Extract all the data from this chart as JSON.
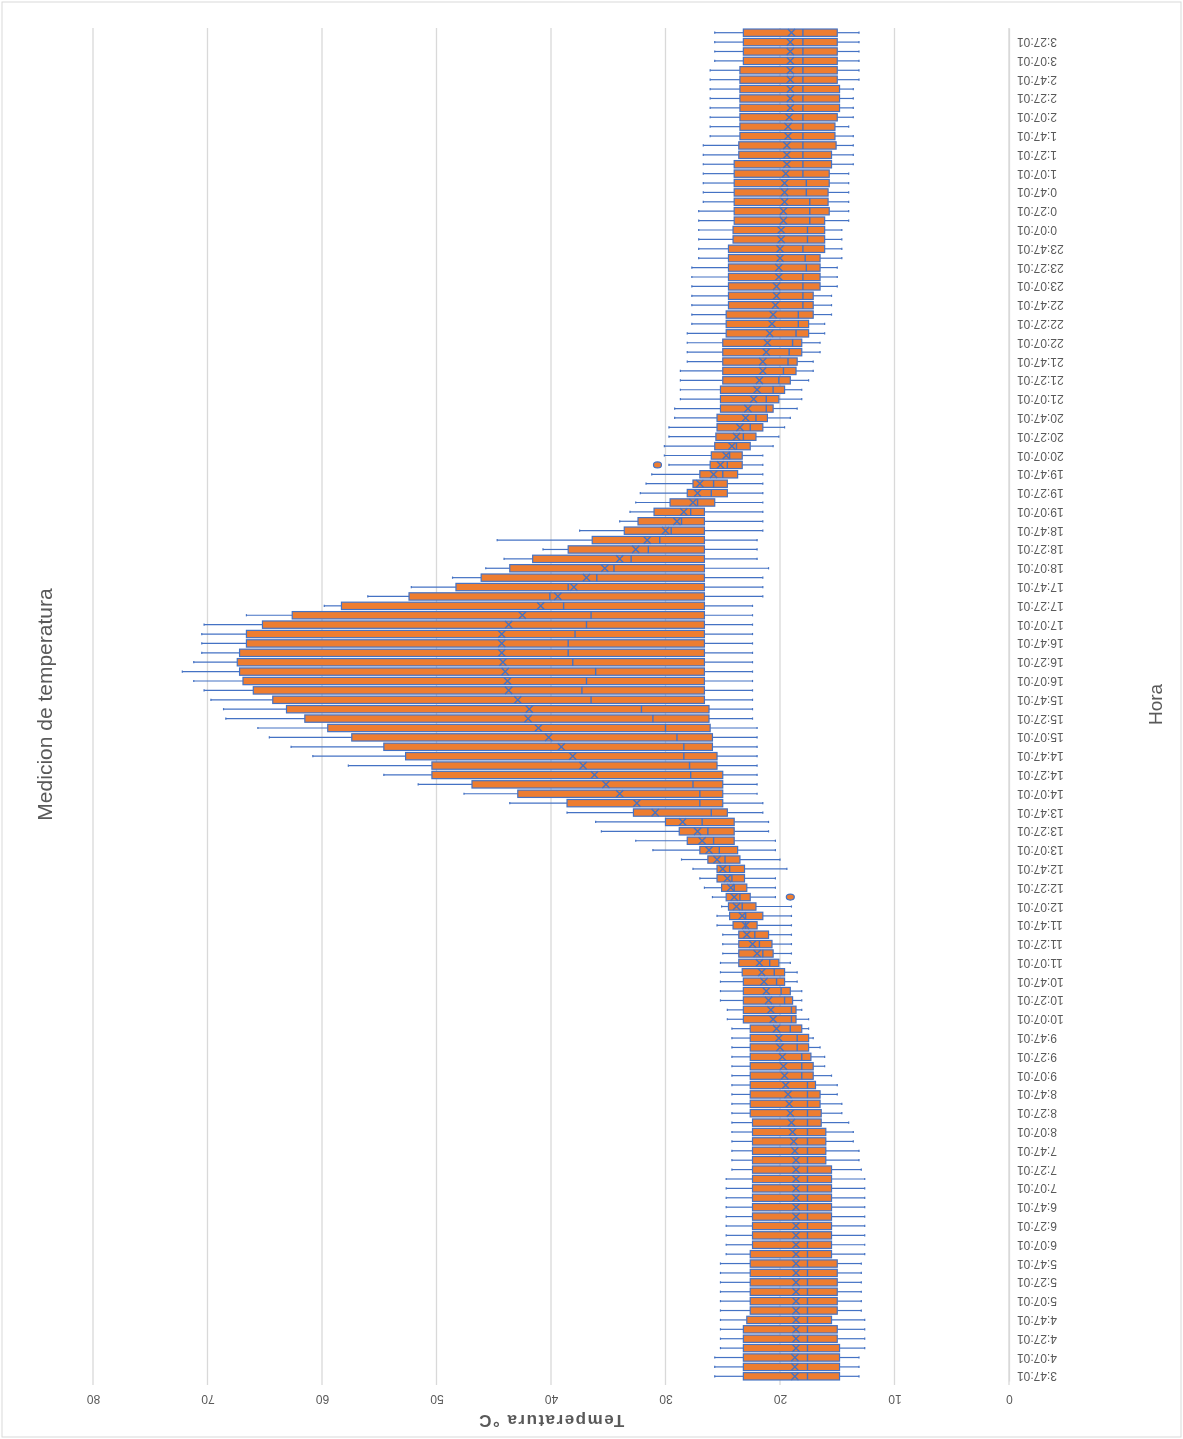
{
  "chart_data": {
    "type": "box",
    "orientation": "horizontal",
    "title": "Medicion de temperatura",
    "ylabel": "Hora",
    "xlabel": "Temperatura °C",
    "color": "#ed7d31",
    "marker": "cross",
    "grid": "x",
    "xlim": [
      80,
      0
    ],
    "xticks": [
      0,
      10,
      20,
      30,
      40,
      50,
      60,
      70,
      80
    ],
    "categories": [
      null,
      "3:27:01",
      null,
      "3:07:01",
      null,
      "2:47:01",
      null,
      "2:27:01",
      null,
      "2:07:01",
      null,
      "1:47:01",
      null,
      "1:27:01",
      null,
      "1:07:01",
      null,
      "0:47:01",
      null,
      "0:27:01",
      null,
      "0:07:01",
      null,
      "23:47:01",
      null,
      "23:27:01",
      null,
      "23:07:01",
      null,
      "22:47:01",
      null,
      "22:27:01",
      null,
      "22:07:01",
      null,
      "21:47:01",
      null,
      "21:27:01",
      null,
      "21:07:01",
      null,
      "20:47:01",
      null,
      "20:27:01",
      null,
      "20:07:01",
      null,
      "19:47:01",
      null,
      "19:27:01",
      null,
      "19:07:01",
      null,
      "18:47:01",
      null,
      "18:27:01",
      null,
      "18:07:01",
      null,
      "17:47:01",
      null,
      "17:27:01",
      null,
      "17:07:01",
      null,
      "16:47:01",
      null,
      "16:27:01",
      null,
      "16:07:01",
      null,
      "15:47:01",
      null,
      "15:27:01",
      null,
      "15:07:01",
      null,
      "14:47:01",
      null,
      "14:27:01",
      null,
      "14:07:01",
      null,
      "13:47:01",
      null,
      "13:27:01",
      null,
      "13:07:01",
      null,
      "12:47:01",
      null,
      "12:27:01",
      null,
      "12:07:01",
      null,
      "11:47:01",
      null,
      "11:27:01",
      null,
      "11:07:01",
      null,
      "10:47:01",
      null,
      "10:27:01",
      null,
      "10:07:01",
      null,
      "9:47:01",
      null,
      "9:27:01",
      null,
      "9:07:01",
      null,
      "8:47:01",
      null,
      "8:27:01",
      null,
      "8:07:01",
      null,
      "7:47:01",
      null,
      "7:27:01",
      null,
      "7:07:01",
      null,
      "6:47:01",
      null,
      "6:27:01",
      null,
      "6:07:01",
      null,
      "5:47:01",
      null,
      "5:27:01",
      null,
      "5:07:01",
      null,
      "4:47:01",
      null,
      "4:27:01",
      null,
      "4:07:01",
      null,
      "3:47:01"
    ],
    "boxes": [
      {
        "low": 13.1,
        "q1": 15.0,
        "median": 18.0,
        "q3": 23.2,
        "high": 25.7,
        "mean": 19.0
      },
      {
        "low": 13.1,
        "q1": 15.0,
        "median": 18.0,
        "q3": 23.2,
        "high": 25.7,
        "mean": 19.1
      },
      {
        "low": 13.1,
        "q1": 15.0,
        "median": 18.0,
        "q3": 23.2,
        "high": 25.7,
        "mean": 19.1
      },
      {
        "low": 13.1,
        "q1": 15.0,
        "median": 18.0,
        "q3": 23.2,
        "high": 25.7,
        "mean": 19.1
      },
      {
        "low": 13.1,
        "q1": 15.0,
        "median": 18.0,
        "q3": 23.5,
        "high": 26.1,
        "mean": 19.1
      },
      {
        "low": 13.1,
        "q1": 15.0,
        "median": 18.0,
        "q3": 23.5,
        "high": 26.1,
        "mean": 19.1
      },
      {
        "low": 13.6,
        "q1": 14.8,
        "median": 18.0,
        "q3": 23.5,
        "high": 26.1,
        "mean": 19.1
      },
      {
        "low": 13.6,
        "q1": 14.8,
        "median": 18.0,
        "q3": 23.5,
        "high": 26.1,
        "mean": 19.1
      },
      {
        "low": 13.6,
        "q1": 14.8,
        "median": 18.0,
        "q3": 23.5,
        "high": 26.1,
        "mean": 19.1
      },
      {
        "low": 13.6,
        "q1": 15.0,
        "median": 18.0,
        "q3": 23.5,
        "high": 26.1,
        "mean": 19.2
      },
      {
        "low": 14.0,
        "q1": 15.2,
        "median": 18.0,
        "q3": 23.5,
        "high": 26.1,
        "mean": 19.3
      },
      {
        "low": 13.6,
        "q1": 15.2,
        "median": 18.0,
        "q3": 23.5,
        "high": 26.1,
        "mean": 19.3
      },
      {
        "low": 13.6,
        "q1": 15.1,
        "median": 18.0,
        "q3": 23.6,
        "high": 26.7,
        "mean": 19.4
      },
      {
        "low": 13.6,
        "q1": 15.5,
        "median": 18.0,
        "q3": 23.6,
        "high": 26.7,
        "mean": 19.4
      },
      {
        "low": 13.6,
        "q1": 15.5,
        "median": 18.0,
        "q3": 24.0,
        "high": 26.7,
        "mean": 19.4
      },
      {
        "low": 14.0,
        "q1": 15.7,
        "median": 18.0,
        "q3": 24.0,
        "high": 26.7,
        "mean": 19.5
      },
      {
        "low": 14.0,
        "q1": 15.7,
        "median": 17.7,
        "q3": 24.0,
        "high": 26.7,
        "mean": 19.6
      },
      {
        "low": 14.0,
        "q1": 15.8,
        "median": 17.7,
        "q3": 24.0,
        "high": 26.7,
        "mean": 19.6
      },
      {
        "low": 14.0,
        "q1": 15.8,
        "median": 17.4,
        "q3": 24.0,
        "high": 26.7,
        "mean": 19.6
      },
      {
        "low": 14.0,
        "q1": 15.7,
        "median": 17.4,
        "q3": 24.0,
        "high": 27.1,
        "mean": 19.7
      },
      {
        "low": 14.0,
        "q1": 16.1,
        "median": 17.4,
        "q3": 24.0,
        "high": 27.1,
        "mean": 19.7
      },
      {
        "low": 14.6,
        "q1": 16.1,
        "median": 17.6,
        "q3": 24.1,
        "high": 27.1,
        "mean": 19.9
      },
      {
        "low": 14.6,
        "q1": 16.1,
        "median": 17.6,
        "q3": 24.1,
        "high": 27.1,
        "mean": 19.9
      },
      {
        "low": 14.6,
        "q1": 16.1,
        "median": 18.0,
        "q3": 24.5,
        "high": 27.1,
        "mean": 20.0
      },
      {
        "low": 14.6,
        "q1": 16.5,
        "median": 17.8,
        "q3": 24.5,
        "high": 27.1,
        "mean": 20.0
      },
      {
        "low": 15.0,
        "q1": 16.5,
        "median": 17.7,
        "q3": 24.5,
        "high": 27.7,
        "mean": 20.1
      },
      {
        "low": 15.0,
        "q1": 16.5,
        "median": 18.0,
        "q3": 24.5,
        "high": 27.7,
        "mean": 20.1
      },
      {
        "low": 15.0,
        "q1": 16.5,
        "median": 18.0,
        "q3": 24.5,
        "high": 27.7,
        "mean": 20.3
      },
      {
        "low": 15.5,
        "q1": 17.1,
        "median": 18.0,
        "q3": 24.5,
        "high": 27.7,
        "mean": 20.3
      },
      {
        "low": 15.5,
        "q1": 17.1,
        "median": 18.0,
        "q3": 24.5,
        "high": 27.7,
        "mean": 20.4
      },
      {
        "low": 15.5,
        "q1": 17.1,
        "median": 18.4,
        "q3": 24.7,
        "high": 27.7,
        "mean": 20.6
      },
      {
        "low": 16.1,
        "q1": 17.5,
        "median": 18.4,
        "q3": 24.7,
        "high": 27.7,
        "mean": 20.7
      },
      {
        "low": 16.1,
        "q1": 17.5,
        "median": 18.6,
        "q3": 24.7,
        "high": 28.1,
        "mean": 20.9
      },
      {
        "low": 16.5,
        "q1": 18.1,
        "median": 18.9,
        "q3": 25.0,
        "high": 28.1,
        "mean": 21.1
      },
      {
        "low": 16.5,
        "q1": 18.1,
        "median": 19.2,
        "q3": 25.0,
        "high": 28.1,
        "mean": 21.2
      },
      {
        "low": 17.1,
        "q1": 18.5,
        "median": 19.3,
        "q3": 25.0,
        "high": 28.1,
        "mean": 21.5
      },
      {
        "low": 17.1,
        "q1": 18.6,
        "median": 19.7,
        "q3": 25.0,
        "high": 28.7,
        "mean": 21.5
      },
      {
        "low": 17.5,
        "q1": 19.1,
        "median": 20.1,
        "q3": 25.0,
        "high": 28.7,
        "mean": 21.8
      },
      {
        "low": 18.1,
        "q1": 19.6,
        "median": 20.6,
        "q3": 25.2,
        "high": 28.7,
        "mean": 22.0
      },
      {
        "low": 18.1,
        "q1": 20.1,
        "median": 21.2,
        "q3": 25.2,
        "high": 28.7,
        "mean": 22.3
      },
      {
        "low": 18.5,
        "q1": 20.6,
        "median": 21.2,
        "q3": 25.2,
        "high": 29.2,
        "mean": 22.8
      },
      {
        "low": 19.1,
        "q1": 21.1,
        "median": 22.1,
        "q3": 25.5,
        "high": 29.2,
        "mean": 23.0
      },
      {
        "low": 19.6,
        "q1": 21.5,
        "median": 22.6,
        "q3": 25.5,
        "high": 29.7,
        "mean": 23.5
      },
      {
        "low": 20.1,
        "q1": 22.1,
        "median": 23.2,
        "q3": 25.6,
        "high": 29.7,
        "mean": 23.8
      },
      {
        "low": 20.6,
        "q1": 22.6,
        "median": 23.8,
        "q3": 25.7,
        "high": 30.1,
        "mean": 24.2
      },
      {
        "low": 21.5,
        "q1": 23.3,
        "median": 24.4,
        "q3": 26.0,
        "high": 30.1,
        "mean": 24.7
      },
      {
        "low": 21.5,
        "q1": 23.3,
        "median": 24.6,
        "q3": 26.1,
        "high": 29.7,
        "mean": 25.2,
        "outliers": [
          30.7
        ]
      },
      {
        "low": 21.5,
        "q1": 23.7,
        "median": 25.0,
        "q3": 27.0,
        "high": 31.2,
        "mean": 25.8
      },
      {
        "low": 21.5,
        "q1": 24.6,
        "median": 25.8,
        "q3": 27.6,
        "high": 31.7,
        "mean": 27.0
      },
      {
        "low": 21.5,
        "q1": 24.6,
        "median": 26.0,
        "q3": 28.1,
        "high": 32.2,
        "mean": 27.2
      },
      {
        "low": 21.5,
        "q1": 25.7,
        "median": 27.2,
        "q3": 29.6,
        "high": 32.6,
        "mean": 27.6
      },
      {
        "low": 21.5,
        "q1": 26.6,
        "median": 27.8,
        "q3": 31.0,
        "high": 33.1,
        "mean": 28.4
      },
      {
        "low": 21.5,
        "q1": 26.6,
        "median": 28.6,
        "q3": 32.4,
        "high": 34.0,
        "mean": 29.0
      },
      {
        "low": 21.5,
        "q1": 26.6,
        "median": 29.5,
        "q3": 33.6,
        "high": 37.5,
        "mean": 30.0
      },
      {
        "low": 22.0,
        "q1": 26.6,
        "median": 30.5,
        "q3": 36.4,
        "high": 44.7,
        "mean": 31.6
      },
      {
        "low": 22.0,
        "q1": 26.6,
        "median": 31.5,
        "q3": 38.5,
        "high": 40.7,
        "mean": 32.6
      },
      {
        "low": 22.0,
        "q1": 26.6,
        "median": 33.0,
        "q3": 41.6,
        "high": 44.1,
        "mean": 34.0
      },
      {
        "low": 21.0,
        "q1": 26.6,
        "median": 34.5,
        "q3": 43.6,
        "high": 45.7,
        "mean": 35.3
      },
      {
        "low": 21.5,
        "q1": 26.6,
        "median": 36.0,
        "q3": 46.1,
        "high": 48.6,
        "mean": 36.9
      },
      {
        "low": 21.5,
        "q1": 26.6,
        "median": 38.5,
        "q3": 48.3,
        "high": 52.2,
        "mean": 38.0
      },
      {
        "low": 21.5,
        "q1": 26.6,
        "median": 40.1,
        "q3": 52.4,
        "high": 56.0,
        "mean": 39.4
      },
      {
        "low": 22.4,
        "q1": 26.6,
        "median": 38.9,
        "q3": 58.3,
        "high": 59.8,
        "mean": 40.9
      },
      {
        "low": 22.4,
        "q1": 26.6,
        "median": 36.5,
        "q3": 62.6,
        "high": 66.6,
        "mean": 42.5
      },
      {
        "low": 22.4,
        "q1": 26.6,
        "median": 36.9,
        "q3": 65.2,
        "high": 70.3,
        "mean": 43.7
      },
      {
        "low": 22.4,
        "q1": 26.6,
        "median": 37.9,
        "q3": 66.6,
        "high": 70.5,
        "mean": 44.3
      },
      {
        "low": 22.4,
        "q1": 26.6,
        "median": 38.5,
        "q3": 66.6,
        "high": 70.5,
        "mean": 44.3
      },
      {
        "low": 22.4,
        "q1": 26.6,
        "median": 38.5,
        "q3": 67.2,
        "high": 70.5,
        "mean": 44.3
      },
      {
        "low": 22.4,
        "q1": 26.6,
        "median": 38.1,
        "q3": 67.4,
        "high": 71.2,
        "mean": 44.2
      },
      {
        "low": 22.4,
        "q1": 26.6,
        "median": 36.1,
        "q3": 67.2,
        "high": 72.2,
        "mean": 44.0
      },
      {
        "low": 22.4,
        "q1": 26.6,
        "median": 36.9,
        "q3": 66.9,
        "high": 71.2,
        "mean": 43.8
      },
      {
        "low": 22.4,
        "q1": 26.6,
        "median": 37.3,
        "q3": 66.0,
        "high": 70.3,
        "mean": 43.7
      },
      {
        "low": 22.4,
        "q1": 26.6,
        "median": 36.5,
        "q3": 64.3,
        "high": 69.7,
        "mean": 42.9
      },
      {
        "low": 22.4,
        "q1": 26.2,
        "median": 32.1,
        "q3": 63.1,
        "high": 68.6,
        "mean": 41.9
      },
      {
        "low": 22.4,
        "q1": 26.2,
        "median": 31.1,
        "q3": 61.5,
        "high": 68.4,
        "mean": 42.0
      },
      {
        "low": 22.0,
        "q1": 26.1,
        "median": 30.0,
        "q3": 59.5,
        "high": 65.6,
        "mean": 41.1
      },
      {
        "low": 22.0,
        "q1": 25.9,
        "median": 29.0,
        "q3": 57.4,
        "high": 64.6,
        "mean": 40.2
      },
      {
        "low": 22.0,
        "q1": 25.9,
        "median": 28.4,
        "q3": 54.6,
        "high": 62.7,
        "mean": 39.1
      },
      {
        "low": 22.0,
        "q1": 25.5,
        "median": 28.4,
        "q3": 52.7,
        "high": 60.8,
        "mean": 38.1
      },
      {
        "low": 22.0,
        "q1": 25.5,
        "median": 27.9,
        "q3": 50.4,
        "high": 57.7,
        "mean": 37.2
      },
      {
        "low": 22.0,
        "q1": 25.0,
        "median": 27.8,
        "q3": 50.4,
        "high": 54.6,
        "mean": 36.2
      },
      {
        "low": 22.0,
        "q1": 25.0,
        "median": 27.6,
        "q3": 46.9,
        "high": 51.6,
        "mean": 35.2
      },
      {
        "low": 22.0,
        "q1": 25.0,
        "median": 27.0,
        "q3": 42.9,
        "high": 47.6,
        "mean": 34.0
      },
      {
        "low": 21.5,
        "q1": 25.0,
        "median": 27.0,
        "q3": 38.6,
        "high": 43.6,
        "mean": 32.5
      },
      {
        "low": 21.5,
        "q1": 24.6,
        "median": 26.0,
        "q3": 32.8,
        "high": 38.6,
        "mean": 30.9
      },
      {
        "low": 21.0,
        "q1": 24.0,
        "median": 26.8,
        "q3": 30.0,
        "high": 36.1,
        "mean": 28.5
      },
      {
        "low": 21.0,
        "q1": 24.0,
        "median": 26.3,
        "q3": 28.8,
        "high": 35.6,
        "mean": 27.2
      },
      {
        "low": 20.4,
        "q1": 24.0,
        "median": 25.8,
        "q3": 28.1,
        "high": 32.6,
        "mean": 26.8
      },
      {
        "low": 20.4,
        "q1": 23.7,
        "median": 25.3,
        "q3": 27.0,
        "high": 31.1,
        "mean": 26.2
      },
      {
        "low": 20.0,
        "q1": 23.5,
        "median": 24.8,
        "q3": 26.3,
        "high": 28.6,
        "mean": 25.5
      },
      {
        "low": 19.4,
        "q1": 23.1,
        "median": 24.4,
        "q3": 25.5,
        "high": 27.6,
        "mean": 25.0
      },
      {
        "low": 20.4,
        "q1": 23.1,
        "median": 24.2,
        "q3": 25.5,
        "high": 27.0,
        "mean": 24.6
      },
      {
        "low": 20.4,
        "q1": 22.9,
        "median": 24.0,
        "q3": 25.1,
        "high": 26.6,
        "mean": 24.3
      },
      {
        "low": 20.4,
        "q1": 22.6,
        "median": 23.5,
        "q3": 24.7,
        "high": 25.9,
        "mean": 24.0,
        "outliers": [
          19.1
        ]
      },
      {
        "low": 19.0,
        "q1": 22.1,
        "median": 23.3,
        "q3": 24.5,
        "high": 25.1,
        "mean": 23.8
      },
      {
        "low": 19.0,
        "q1": 21.5,
        "median": 23.0,
        "q3": 24.4,
        "high": 25.5,
        "mean": 23.3
      },
      {
        "low": 19.0,
        "q1": 22.0,
        "median": 23.0,
        "q3": 24.1,
        "high": 25.5,
        "mean": 23.0
      },
      {
        "low": 19.0,
        "q1": 21.0,
        "median": 22.2,
        "q3": 23.6,
        "high": 25.0,
        "mean": 22.9
      },
      {
        "low": 19.0,
        "q1": 20.7,
        "median": 21.8,
        "q3": 23.6,
        "high": 25.0,
        "mean": 22.4
      },
      {
        "low": 19.0,
        "q1": 20.6,
        "median": 21.5,
        "q3": 23.6,
        "high": 25.0,
        "mean": 22.0
      },
      {
        "low": 19.1,
        "q1": 20.1,
        "median": 20.9,
        "q3": 23.6,
        "high": 25.2,
        "mean": 21.8
      },
      {
        "low": 18.5,
        "q1": 19.6,
        "median": 20.5,
        "q3": 23.3,
        "high": 25.2,
        "mean": 21.6
      },
      {
        "low": 18.5,
        "q1": 19.6,
        "median": 20.3,
        "q3": 23.2,
        "high": 25.2,
        "mean": 21.4
      },
      {
        "low": 18.1,
        "q1": 19.1,
        "median": 19.9,
        "q3": 23.2,
        "high": 25.2,
        "mean": 21.2
      },
      {
        "low": 18.1,
        "q1": 18.9,
        "median": 19.6,
        "q3": 23.2,
        "high": 25.2,
        "mean": 21.0
      },
      {
        "low": 18.1,
        "q1": 18.6,
        "median": 19.0,
        "q3": 23.2,
        "high": 24.6,
        "mean": 20.8
      },
      {
        "low": 17.5,
        "q1": 18.6,
        "median": 19.0,
        "q3": 23.2,
        "high": 24.6,
        "mean": 20.6
      },
      {
        "low": 17.5,
        "q1": 18.1,
        "median": 19.1,
        "q3": 22.6,
        "high": 24.2,
        "mean": 20.3
      },
      {
        "low": 17.1,
        "q1": 17.5,
        "median": 18.5,
        "q3": 22.6,
        "high": 24.2,
        "mean": 20.1
      },
      {
        "low": 16.5,
        "q1": 17.5,
        "median": 18.5,
        "q3": 22.6,
        "high": 24.2,
        "mean": 20.0
      },
      {
        "low": 16.1,
        "q1": 17.3,
        "median": 18.1,
        "q3": 22.6,
        "high": 24.2,
        "mean": 19.8
      },
      {
        "low": 16.1,
        "q1": 17.1,
        "median": 18.1,
        "q3": 22.6,
        "high": 24.2,
        "mean": 19.7
      },
      {
        "low": 15.5,
        "q1": 17.1,
        "median": 18.1,
        "q3": 22.6,
        "high": 24.2,
        "mean": 19.6
      },
      {
        "low": 15.0,
        "q1": 16.9,
        "median": 17.6,
        "q3": 22.6,
        "high": 24.2,
        "mean": 19.5
      },
      {
        "low": 15.0,
        "q1": 16.5,
        "median": 17.6,
        "q3": 22.6,
        "high": 24.2,
        "mean": 19.3
      },
      {
        "low": 14.6,
        "q1": 16.5,
        "median": 17.6,
        "q3": 22.6,
        "high": 24.2,
        "mean": 19.2
      },
      {
        "low": 14.6,
        "q1": 16.4,
        "median": 17.6,
        "q3": 22.6,
        "high": 24.2,
        "mean": 19.1
      },
      {
        "low": 14.0,
        "q1": 16.4,
        "median": 17.6,
        "q3": 22.4,
        "high": 24.2,
        "mean": 19.0
      },
      {
        "low": 13.6,
        "q1": 16.0,
        "median": 17.6,
        "q3": 22.4,
        "high": 24.2,
        "mean": 18.9
      },
      {
        "low": 13.6,
        "q1": 16.0,
        "median": 17.6,
        "q3": 22.4,
        "high": 24.2,
        "mean": 18.8
      },
      {
        "low": 13.1,
        "q1": 16.0,
        "median": 17.6,
        "q3": 22.4,
        "high": 24.2,
        "mean": 18.7
      },
      {
        "low": 13.1,
        "q1": 16.0,
        "median": 17.6,
        "q3": 22.4,
        "high": 24.2,
        "mean": 18.6
      },
      {
        "low": 12.9,
        "q1": 15.5,
        "median": 17.6,
        "q3": 22.4,
        "high": 24.2,
        "mean": 18.6
      },
      {
        "low": 12.6,
        "q1": 15.5,
        "median": 17.6,
        "q3": 22.4,
        "high": 24.7,
        "mean": 18.6
      },
      {
        "low": 12.6,
        "q1": 15.5,
        "median": 17.6,
        "q3": 22.4,
        "high": 24.7,
        "mean": 18.6
      },
      {
        "low": 12.6,
        "q1": 15.5,
        "median": 17.6,
        "q3": 22.4,
        "high": 24.7,
        "mean": 18.6
      },
      {
        "low": 12.6,
        "q1": 15.5,
        "median": 17.6,
        "q3": 22.4,
        "high": 24.7,
        "mean": 18.6
      },
      {
        "low": 12.6,
        "q1": 15.5,
        "median": 17.6,
        "q3": 22.4,
        "high": 24.7,
        "mean": 18.6
      },
      {
        "low": 12.6,
        "q1": 15.5,
        "median": 17.6,
        "q3": 22.4,
        "high": 24.7,
        "mean": 18.6
      },
      {
        "low": 12.6,
        "q1": 15.5,
        "median": 17.6,
        "q3": 22.4,
        "high": 24.7,
        "mean": 18.6
      },
      {
        "low": 12.6,
        "q1": 15.5,
        "median": 17.6,
        "q3": 22.4,
        "high": 24.7,
        "mean": 18.6
      },
      {
        "low": 12.6,
        "q1": 15.5,
        "median": 17.6,
        "q3": 22.6,
        "high": 24.7,
        "mean": 18.6
      },
      {
        "low": 12.9,
        "q1": 15.0,
        "median": 17.6,
        "q3": 22.6,
        "high": 25.2,
        "mean": 18.6
      },
      {
        "low": 12.9,
        "q1": 15.0,
        "median": 17.6,
        "q3": 22.6,
        "high": 25.2,
        "mean": 18.6
      },
      {
        "low": 12.9,
        "q1": 15.0,
        "median": 17.6,
        "q3": 22.6,
        "high": 25.2,
        "mean": 18.6
      },
      {
        "low": 12.9,
        "q1": 15.0,
        "median": 17.6,
        "q3": 22.6,
        "high": 25.2,
        "mean": 18.6
      },
      {
        "low": 12.9,
        "q1": 15.0,
        "median": 17.6,
        "q3": 22.6,
        "high": 25.2,
        "mean": 18.6
      },
      {
        "low": 12.9,
        "q1": 15.0,
        "median": 17.6,
        "q3": 22.6,
        "high": 25.2,
        "mean": 18.6
      },
      {
        "low": 12.6,
        "q1": 15.5,
        "median": 17.6,
        "q3": 22.9,
        "high": 25.2,
        "mean": 18.6
      },
      {
        "low": 12.6,
        "q1": 15.0,
        "median": 17.6,
        "q3": 23.2,
        "high": 25.2,
        "mean": 18.6
      },
      {
        "low": 12.6,
        "q1": 15.0,
        "median": 17.6,
        "q3": 23.2,
        "high": 25.2,
        "mean": 18.6
      },
      {
        "low": 12.6,
        "q1": 14.8,
        "median": 17.6,
        "q3": 23.2,
        "high": 25.2,
        "mean": 18.6
      },
      {
        "low": 13.1,
        "q1": 14.8,
        "median": 17.6,
        "q3": 23.2,
        "high": 25.7,
        "mean": 18.7
      },
      {
        "low": 13.1,
        "q1": 14.8,
        "median": 17.6,
        "q3": 23.2,
        "high": 25.7,
        "mean": 18.7
      },
      {
        "low": 13.1,
        "q1": 14.8,
        "median": 17.6,
        "q3": 23.2,
        "high": 25.7,
        "mean": 18.7
      }
    ]
  }
}
